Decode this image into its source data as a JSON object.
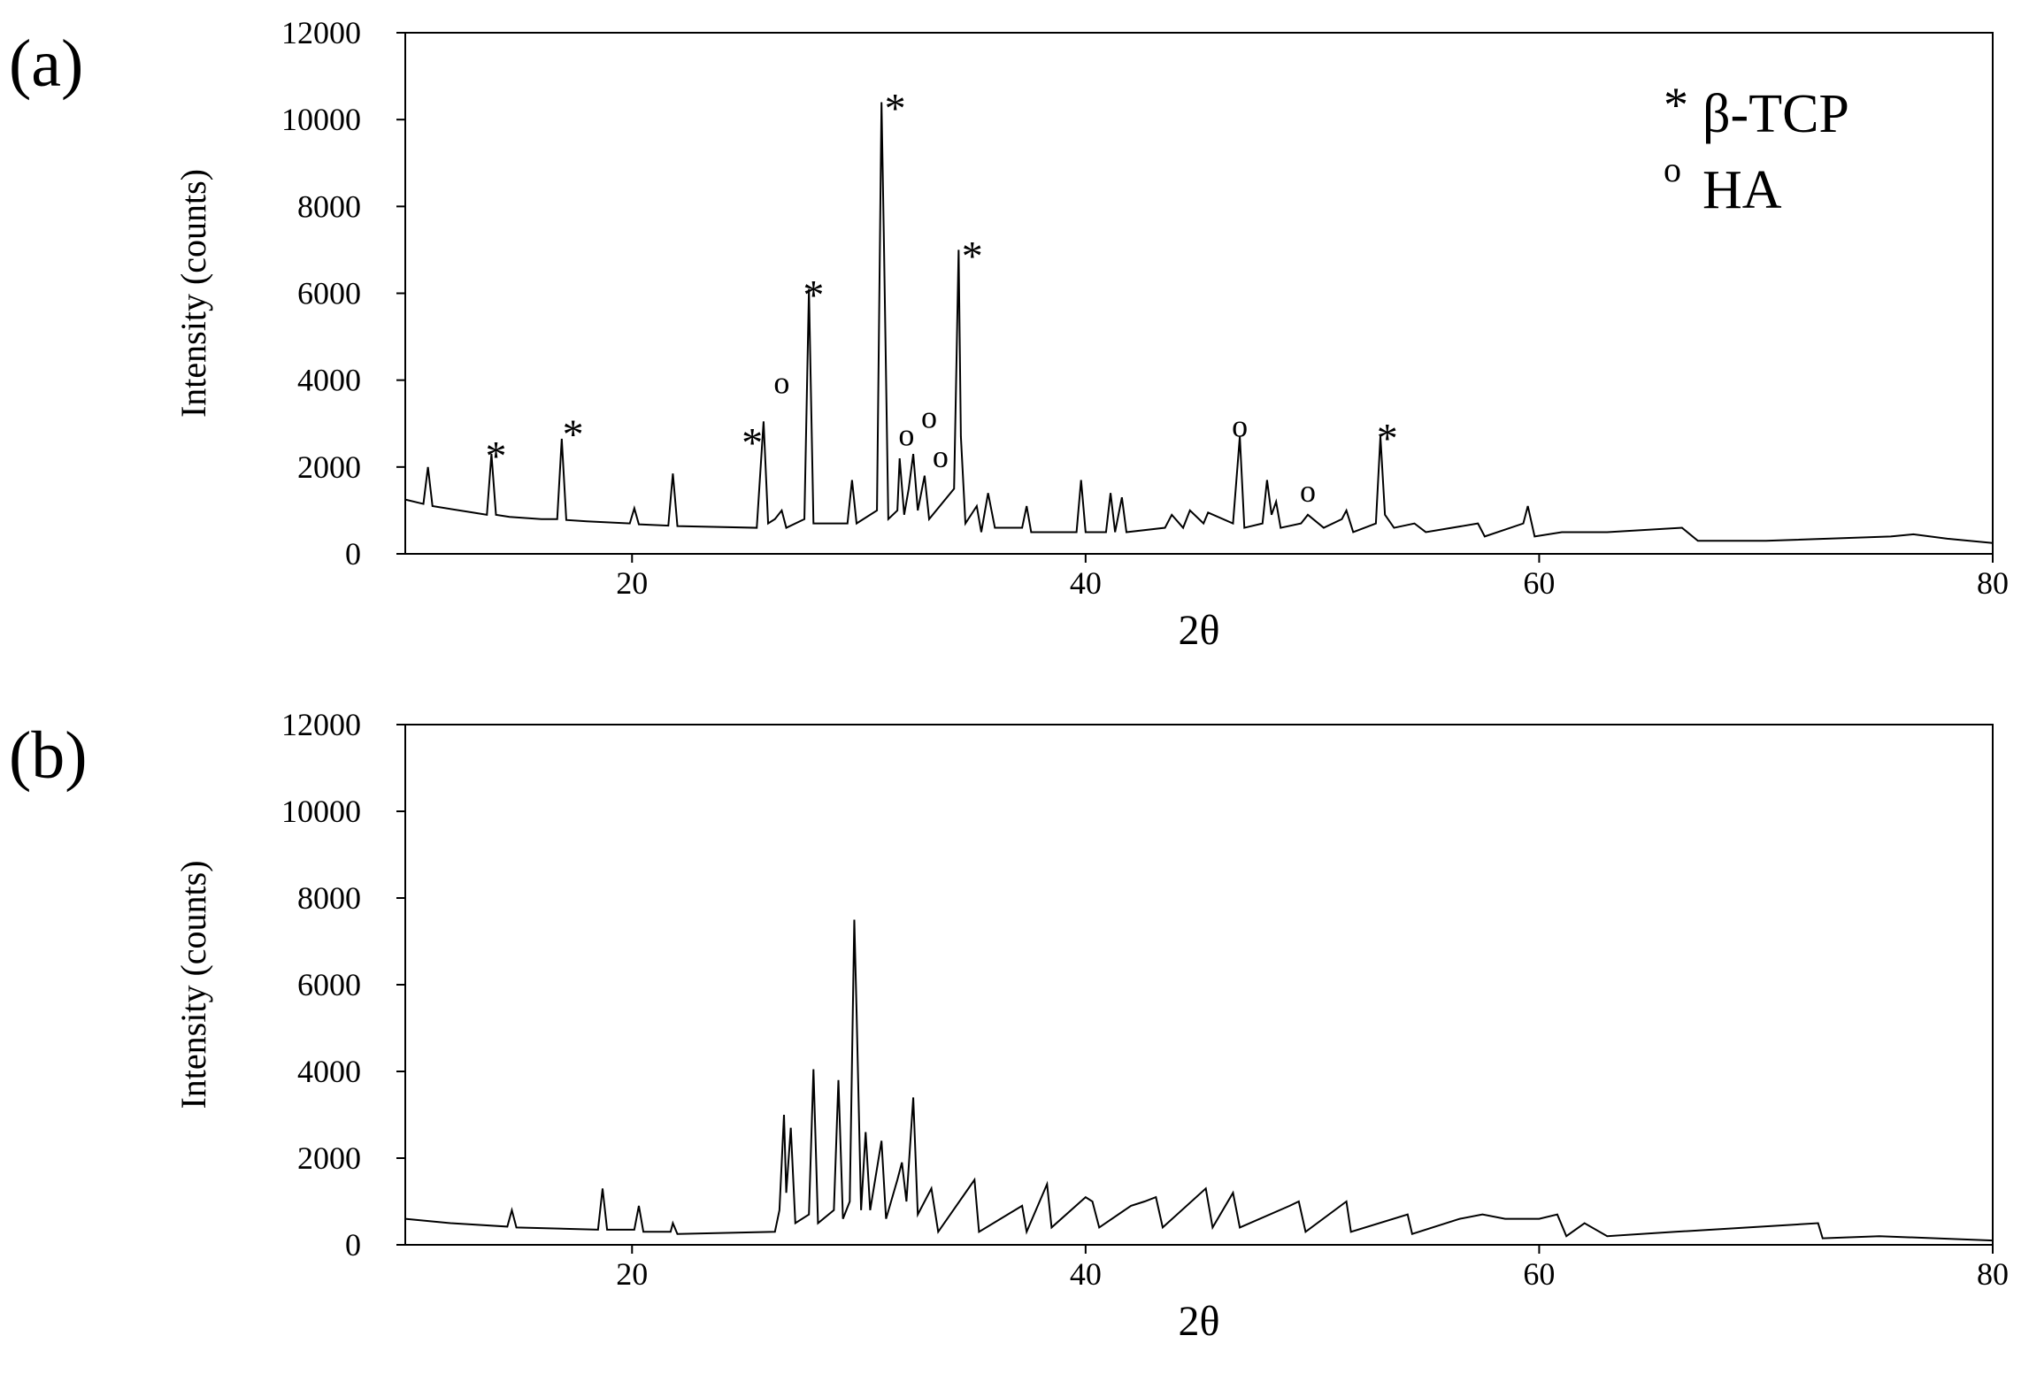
{
  "chart_data": [
    {
      "type": "line",
      "panel_label": "(a)",
      "x_label": "2θ",
      "y_label": "Intensity (counts)",
      "xlim": [
        10,
        80
      ],
      "xticks": [
        20,
        40,
        60,
        80
      ],
      "ylim": [
        0,
        12000
      ],
      "yticks": [
        0,
        2000,
        4000,
        6000,
        8000,
        10000,
        12000
      ],
      "legend": [
        {
          "symbol": "*",
          "label": "β-TCP"
        },
        {
          "symbol": "o",
          "label": "HA"
        }
      ],
      "x": [
        10,
        10.8,
        11.0,
        11.2,
        13,
        13.6,
        13.8,
        14.0,
        14.6,
        16,
        16.7,
        16.9,
        17.1,
        18,
        19.9,
        20.1,
        20.3,
        21.6,
        21.8,
        22.0,
        25.5,
        25.8,
        26.0,
        26.3,
        26.6,
        26.8,
        27.6,
        27.8,
        28.0,
        29.5,
        29.7,
        29.9,
        30.8,
        31.0,
        31.1,
        31.3,
        31.7,
        31.8,
        32.0,
        32.2,
        32.4,
        32.6,
        32.9,
        33.1,
        34.2,
        34.4,
        34.5,
        34.7,
        35.2,
        35.4,
        35.7,
        36,
        37.2,
        37.4,
        37.6,
        39.6,
        39.8,
        40,
        40.9,
        41.1,
        41.3,
        41.6,
        41.8,
        43.5,
        43.8,
        44.3,
        44.6,
        45.2,
        45.4,
        46.5,
        46.8,
        47,
        47.8,
        48.0,
        48.2,
        48.4,
        48.6,
        49.5,
        49.8,
        50.5,
        51.3,
        51.5,
        51.8,
        52.8,
        53.0,
        53.2,
        53.6,
        54.5,
        55,
        57.3,
        57.6,
        59.3,
        59.5,
        59.8,
        61,
        63,
        66.3,
        67,
        70,
        75.5,
        76.5,
        78,
        80
      ],
      "series": [
        {
          "color": "#000000",
          "values": [
            1250,
            1150,
            2000,
            1100,
            950,
            900,
            2300,
            900,
            850,
            800,
            800,
            2650,
            780,
            750,
            700,
            1050,
            680,
            650,
            1850,
            640,
            600,
            3050,
            700,
            800,
            1000,
            600,
            800,
            6100,
            700,
            700,
            1700,
            700,
            1000,
            10400,
            7400,
            800,
            1000,
            2200,
            900,
            1500,
            2300,
            1000,
            1800,
            800,
            1500,
            7000,
            2700,
            700,
            1100,
            500,
            1400,
            600,
            600,
            1100,
            500,
            500,
            1700,
            500,
            500,
            1400,
            500,
            1300,
            500,
            600,
            900,
            600,
            1000,
            700,
            950,
            700,
            2700,
            600,
            700,
            1700,
            900,
            1200,
            600,
            700,
            900,
            600,
            800,
            1000,
            500,
            700,
            2700,
            900,
            600,
            700,
            500,
            700,
            400,
            700,
            1100,
            400,
            500,
            500,
            600,
            300,
            300,
            400,
            450,
            350,
            250
          ]
        }
      ],
      "annotations": [
        {
          "text": "*",
          "x": 14.0,
          "y": 2500
        },
        {
          "text": "*",
          "x": 17.4,
          "y": 3000
        },
        {
          "text": "*",
          "x": 25.3,
          "y": 2800
        },
        {
          "text": "o",
          "x": 26.6,
          "y": 3700
        },
        {
          "text": "*",
          "x": 28.0,
          "y": 6200
        },
        {
          "text": "*",
          "x": 31.6,
          "y": 10500
        },
        {
          "text": "o",
          "x": 32.1,
          "y": 2500
        },
        {
          "text": "o",
          "x": 33.1,
          "y": 2900
        },
        {
          "text": "o",
          "x": 33.6,
          "y": 2000
        },
        {
          "text": "*",
          "x": 35.0,
          "y": 7100
        },
        {
          "text": "o",
          "x": 46.8,
          "y": 2700
        },
        {
          "text": "o",
          "x": 49.8,
          "y": 1200
        },
        {
          "text": "*",
          "x": 53.3,
          "y": 2900
        }
      ]
    },
    {
      "type": "line",
      "panel_label": "(b)",
      "x_label": "2θ",
      "y_label": "Intensity (counts)",
      "xlim": [
        10,
        80
      ],
      "xticks": [
        20,
        40,
        60,
        80
      ],
      "ylim": [
        0,
        12000
      ],
      "yticks": [
        0,
        2000,
        4000,
        6000,
        8000,
        10000,
        12000
      ],
      "x": [
        10,
        12,
        14.5,
        14.7,
        14.9,
        18.5,
        18.7,
        18.9,
        20.1,
        20.3,
        20.5,
        21.7,
        21.8,
        22,
        26.3,
        26.5,
        26.7,
        26.8,
        27.0,
        27.2,
        27.8,
        28.0,
        28.2,
        28.9,
        29.1,
        29.3,
        29.6,
        29.8,
        29.9,
        30.1,
        30.3,
        30.5,
        31.0,
        31.2,
        31.7,
        31.9,
        32.1,
        32.4,
        32.6,
        33.2,
        33.5,
        35.1,
        35.3,
        37.2,
        37.4,
        38.3,
        38.5,
        40,
        40.3,
        40.6,
        42,
        42.6,
        43.1,
        43.4,
        45.3,
        45.6,
        46.5,
        46.8,
        49,
        49.4,
        49.7,
        51.5,
        51.7,
        54.2,
        54.4,
        56.5,
        57.5,
        58.5,
        60,
        60.8,
        61.2,
        62,
        63,
        66,
        72.3,
        72.5,
        75,
        80
      ],
      "series": [
        {
          "color": "#000000",
          "values": [
            600,
            500,
            420,
            800,
            400,
            350,
            1300,
            350,
            350,
            900,
            300,
            300,
            500,
            250,
            300,
            800,
            3000,
            1200,
            2700,
            500,
            700,
            4050,
            500,
            800,
            3800,
            600,
            1000,
            7500,
            5400,
            800,
            2600,
            800,
            2400,
            600,
            1500,
            1900,
            1000,
            3400,
            700,
            1300,
            300,
            1500,
            300,
            900,
            300,
            1400,
            400,
            1100,
            1000,
            400,
            900,
            1000,
            1100,
            400,
            1300,
            400,
            1200,
            400,
            900,
            1000,
            300,
            1000,
            300,
            700,
            250,
            600,
            700,
            600,
            600,
            700,
            200,
            500,
            200,
            300,
            500,
            150,
            200,
            100
          ]
        }
      ]
    }
  ]
}
